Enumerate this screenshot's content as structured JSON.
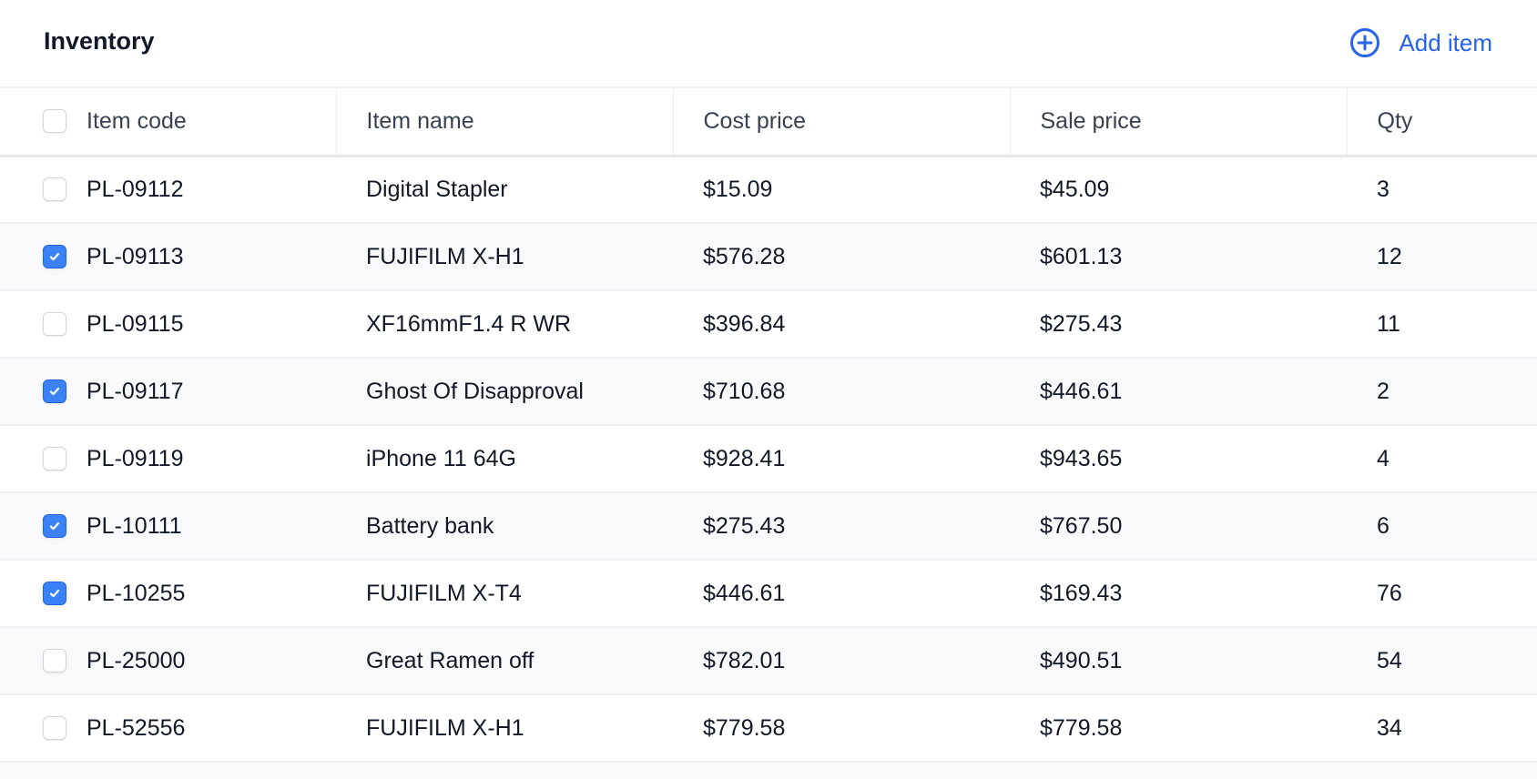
{
  "header": {
    "title": "Inventory",
    "add_label": "Add item",
    "add_icon": "plus-circle-icon"
  },
  "colors": {
    "accent": "#2563eb",
    "checkbox_checked": "#3b82f6",
    "stripe": "#f8f9fb"
  },
  "table": {
    "columns": [
      "Item code",
      "Item name",
      "Cost price",
      "Sale price",
      "Qty"
    ],
    "select_all_checked": false,
    "rows": [
      {
        "checked": false,
        "code": "PL-09112",
        "name": "Digital Stapler",
        "cost": "$15.09",
        "sale": "$45.09",
        "qty": "3"
      },
      {
        "checked": true,
        "code": "PL-09113",
        "name": "FUJIFILM X-H1",
        "cost": "$576.28",
        "sale": "$601.13",
        "qty": "12"
      },
      {
        "checked": false,
        "code": "PL-09115",
        "name": "XF16mmF1.4 R WR",
        "cost": "$396.84",
        "sale": "$275.43",
        "qty": "11"
      },
      {
        "checked": true,
        "code": "PL-09117",
        "name": "Ghost Of Disapproval",
        "cost": "$710.68",
        "sale": "$446.61",
        "qty": "2"
      },
      {
        "checked": false,
        "code": "PL-09119",
        "name": "iPhone 11 64G",
        "cost": "$928.41",
        "sale": "$943.65",
        "qty": "4"
      },
      {
        "checked": true,
        "code": "PL-10111",
        "name": "Battery bank",
        "cost": "$275.43",
        "sale": "$767.50",
        "qty": "6"
      },
      {
        "checked": true,
        "code": "PL-10255",
        "name": "FUJIFILM X-T4",
        "cost": "$446.61",
        "sale": "$169.43",
        "qty": "76"
      },
      {
        "checked": false,
        "code": "PL-25000",
        "name": "Great Ramen off",
        "cost": "$782.01",
        "sale": "$490.51",
        "qty": "54"
      },
      {
        "checked": false,
        "code": "PL-52556",
        "name": "FUJIFILM X-H1",
        "cost": "$779.58",
        "sale": "$779.58",
        "qty": "34"
      }
    ]
  }
}
